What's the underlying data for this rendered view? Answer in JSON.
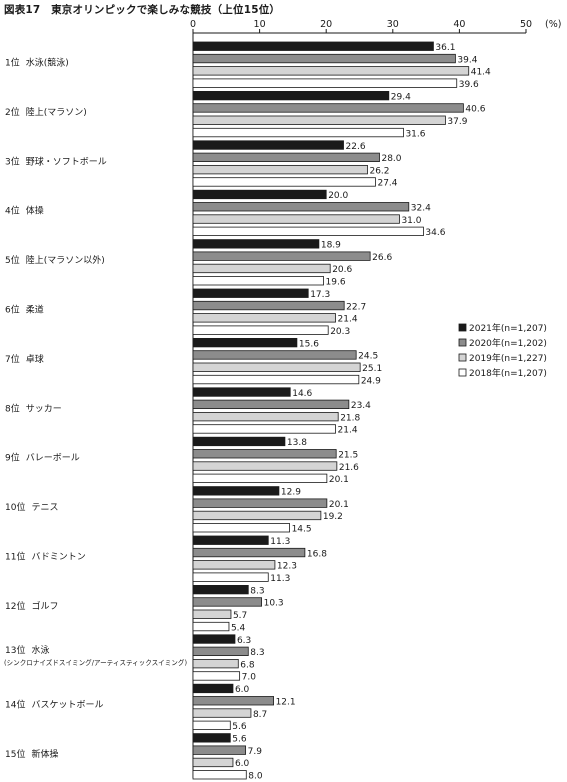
{
  "figure_title": "図表17　東京オリンピックで楽しみな競技（上位15位）",
  "unit_label": "(%)",
  "chart_data": {
    "type": "bar",
    "orientation": "horizontal",
    "xlim": [
      0,
      50
    ],
    "ticks": [
      0,
      10,
      20,
      30,
      40,
      50
    ],
    "grid": false,
    "legend_position": "right",
    "categories": [
      [
        "1位",
        "水泳(競泳)"
      ],
      [
        "2位",
        "陸上(マラソン)"
      ],
      [
        "3位",
        "野球・ソフトボール"
      ],
      [
        "4位",
        "体操"
      ],
      [
        "5位",
        "陸上(マラソン以外)"
      ],
      [
        "6位",
        "柔道"
      ],
      [
        "7位",
        "卓球"
      ],
      [
        "8位",
        "サッカー"
      ],
      [
        "9位",
        "バレーボール"
      ],
      [
        "10位",
        "テニス"
      ],
      [
        "11位",
        "バドミントン"
      ],
      [
        "12位",
        "ゴルフ"
      ],
      [
        "13位",
        "水泳",
        "(シンクロナイズドスイミング/アーティスティックスイミング)"
      ],
      [
        "14位",
        "バスケットボール"
      ],
      [
        "15位",
        "新体操"
      ]
    ],
    "series": [
      {
        "name": "2021年(n=1,207)",
        "color": "#1a1a1a",
        "values": [
          36.1,
          29.4,
          22.6,
          20.0,
          18.9,
          17.3,
          15.6,
          14.6,
          13.8,
          12.9,
          11.3,
          8.3,
          6.3,
          6.0,
          5.6
        ]
      },
      {
        "name": "2020年(n=1,202)",
        "color": "#8c8c8c",
        "values": [
          39.4,
          40.6,
          28.0,
          32.4,
          26.6,
          22.7,
          24.5,
          23.4,
          21.5,
          20.1,
          16.8,
          10.3,
          8.3,
          12.1,
          7.9
        ]
      },
      {
        "name": "2019年(n=1,227)",
        "color": "#d4d4d4",
        "values": [
          41.4,
          37.9,
          26.2,
          31.0,
          20.6,
          21.4,
          25.1,
          21.8,
          21.6,
          19.2,
          12.3,
          5.7,
          6.8,
          8.7,
          6.0
        ]
      },
      {
        "name": "2018年(n=1,207)",
        "color": "#ffffff",
        "values": [
          39.6,
          31.6,
          27.4,
          34.6,
          19.6,
          20.3,
          24.9,
          21.4,
          20.1,
          14.5,
          11.3,
          5.4,
          7.0,
          5.6,
          8.0
        ]
      }
    ]
  }
}
